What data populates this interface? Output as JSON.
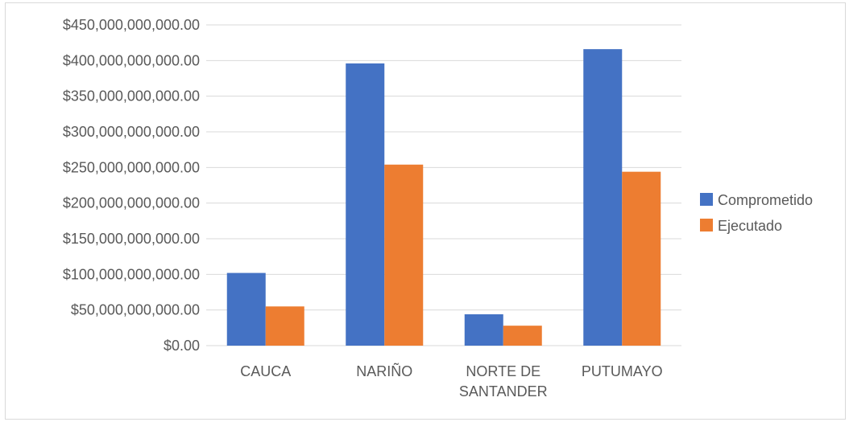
{
  "chart_data": {
    "type": "bar",
    "categories": [
      [
        "CAUCA"
      ],
      [
        "NARIÑO"
      ],
      [
        "NORTE DE",
        "SANTANDER"
      ],
      [
        "PUTUMAYO"
      ]
    ],
    "series": [
      {
        "name": "Comprometido",
        "color": "#4472C4",
        "values": [
          102000000000,
          396000000000,
          44000000000,
          416000000000
        ]
      },
      {
        "name": "Ejecutado",
        "color": "#ED7D31",
        "values": [
          55000000000,
          254000000000,
          28000000000,
          244000000000
        ]
      }
    ],
    "ylim": [
      0,
      450000000000
    ],
    "y_ticks": [
      {
        "value": 0,
        "label": "$0.00"
      },
      {
        "value": 50000000000,
        "label": "$50,000,000,000.00"
      },
      {
        "value": 100000000000,
        "label": "$100,000,000,000.00"
      },
      {
        "value": 150000000000,
        "label": "$150,000,000,000.00"
      },
      {
        "value": 200000000000,
        "label": "$200,000,000,000.00"
      },
      {
        "value": 250000000000,
        "label": "$250,000,000,000.00"
      },
      {
        "value": 300000000000,
        "label": "$300,000,000,000.00"
      },
      {
        "value": 350000000000,
        "label": "$350,000,000,000.00"
      },
      {
        "value": 400000000000,
        "label": "$400,000,000,000.00"
      },
      {
        "value": 450000000000,
        "label": "$450,000,000,000.00"
      }
    ],
    "grid": true,
    "legend_position": "right",
    "colors": {
      "gridline": "#d9d9d9",
      "text": "#595959"
    }
  }
}
